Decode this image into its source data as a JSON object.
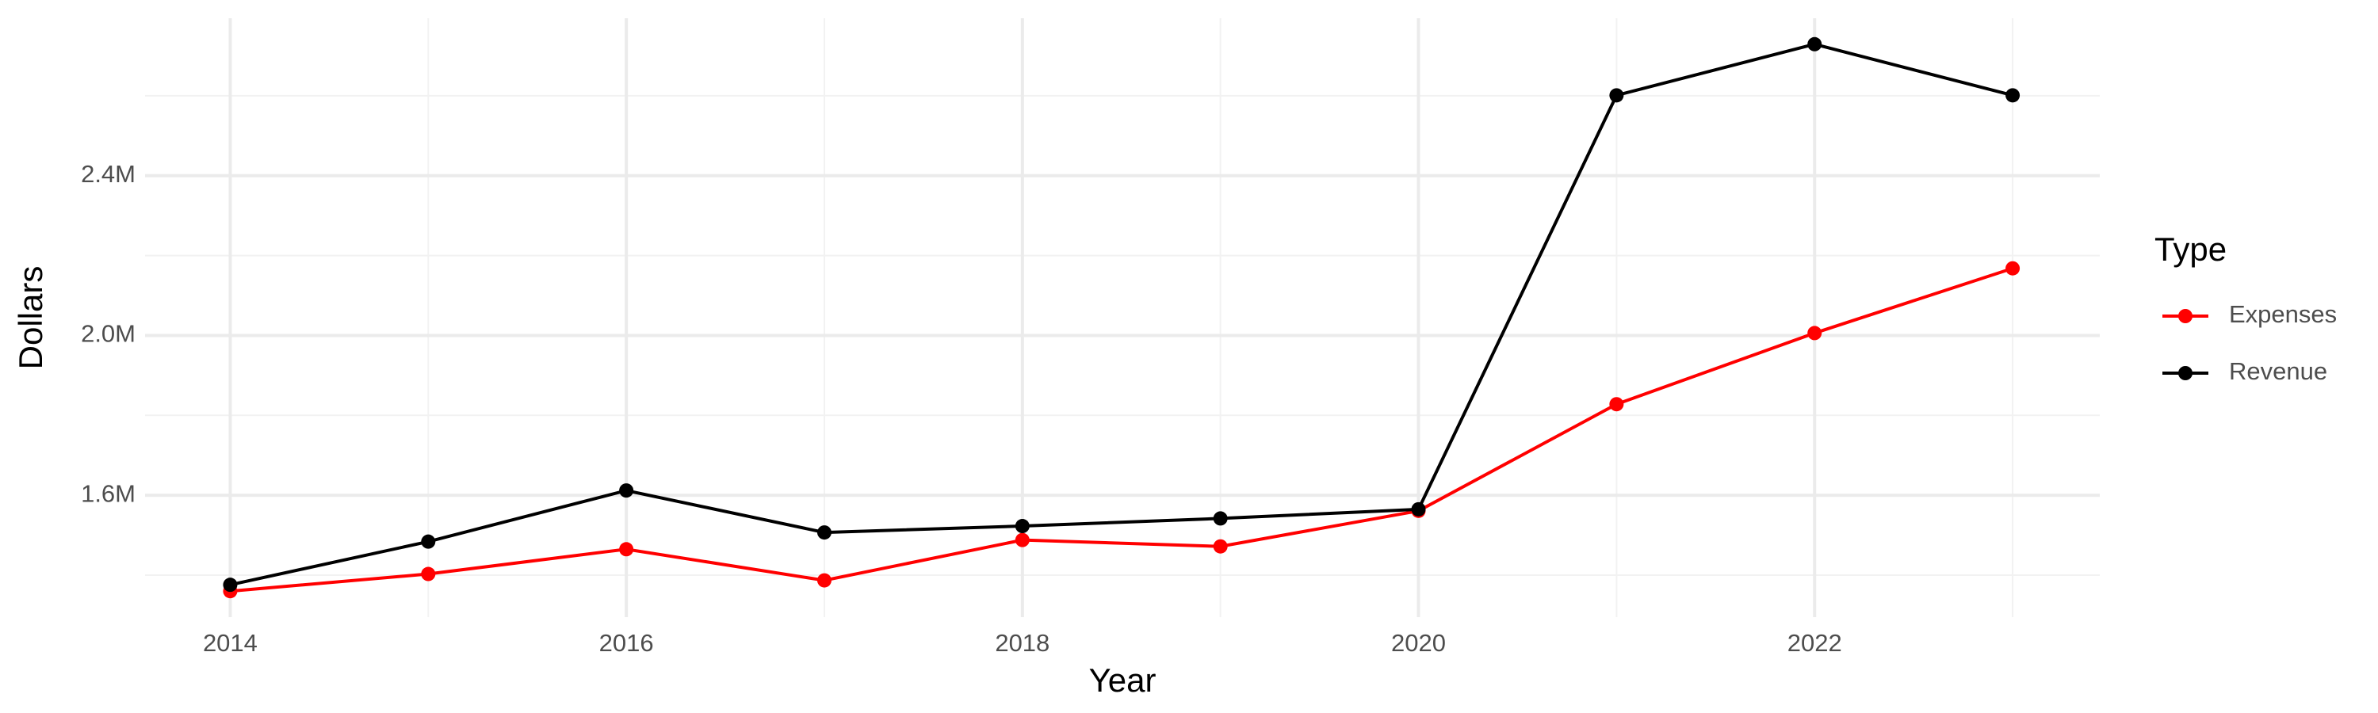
{
  "chart_data": {
    "type": "line",
    "x_label": "Year",
    "y_label": "Dollars",
    "legend_title": "Type",
    "x": [
      2014,
      2015,
      2016,
      2017,
      2018,
      2019,
      2020,
      2021,
      2022,
      2023
    ],
    "series": [
      {
        "name": "Expenses",
        "color": "#ff0000",
        "values": [
          1360000,
          1403000,
          1465000,
          1387000,
          1488000,
          1472000,
          1561000,
          1828000,
          2006000,
          2168000
        ]
      },
      {
        "name": "Revenue",
        "color": "#000000",
        "values": [
          1376000,
          1484000,
          1612000,
          1507000,
          1523000,
          1542000,
          1565000,
          2601000,
          2729000,
          2601000
        ]
      }
    ],
    "xlim": [
      2013.57,
      2023.44
    ],
    "xticks": [
      2014,
      2016,
      2018,
      2020,
      2022
    ],
    "x_minor_grid": [
      2015,
      2017,
      2019,
      2021,
      2023
    ],
    "ylim": [
      1295000,
      2794000
    ],
    "yticks": [
      {
        "value": 1600000,
        "label": "1.6M"
      },
      {
        "value": 2000000,
        "label": "2.0M"
      },
      {
        "value": 2400000,
        "label": "2.4M"
      }
    ],
    "y_minor_grid": [
      1400000,
      1800000,
      2200000,
      2600000
    ],
    "grid": true,
    "legend": "right"
  }
}
